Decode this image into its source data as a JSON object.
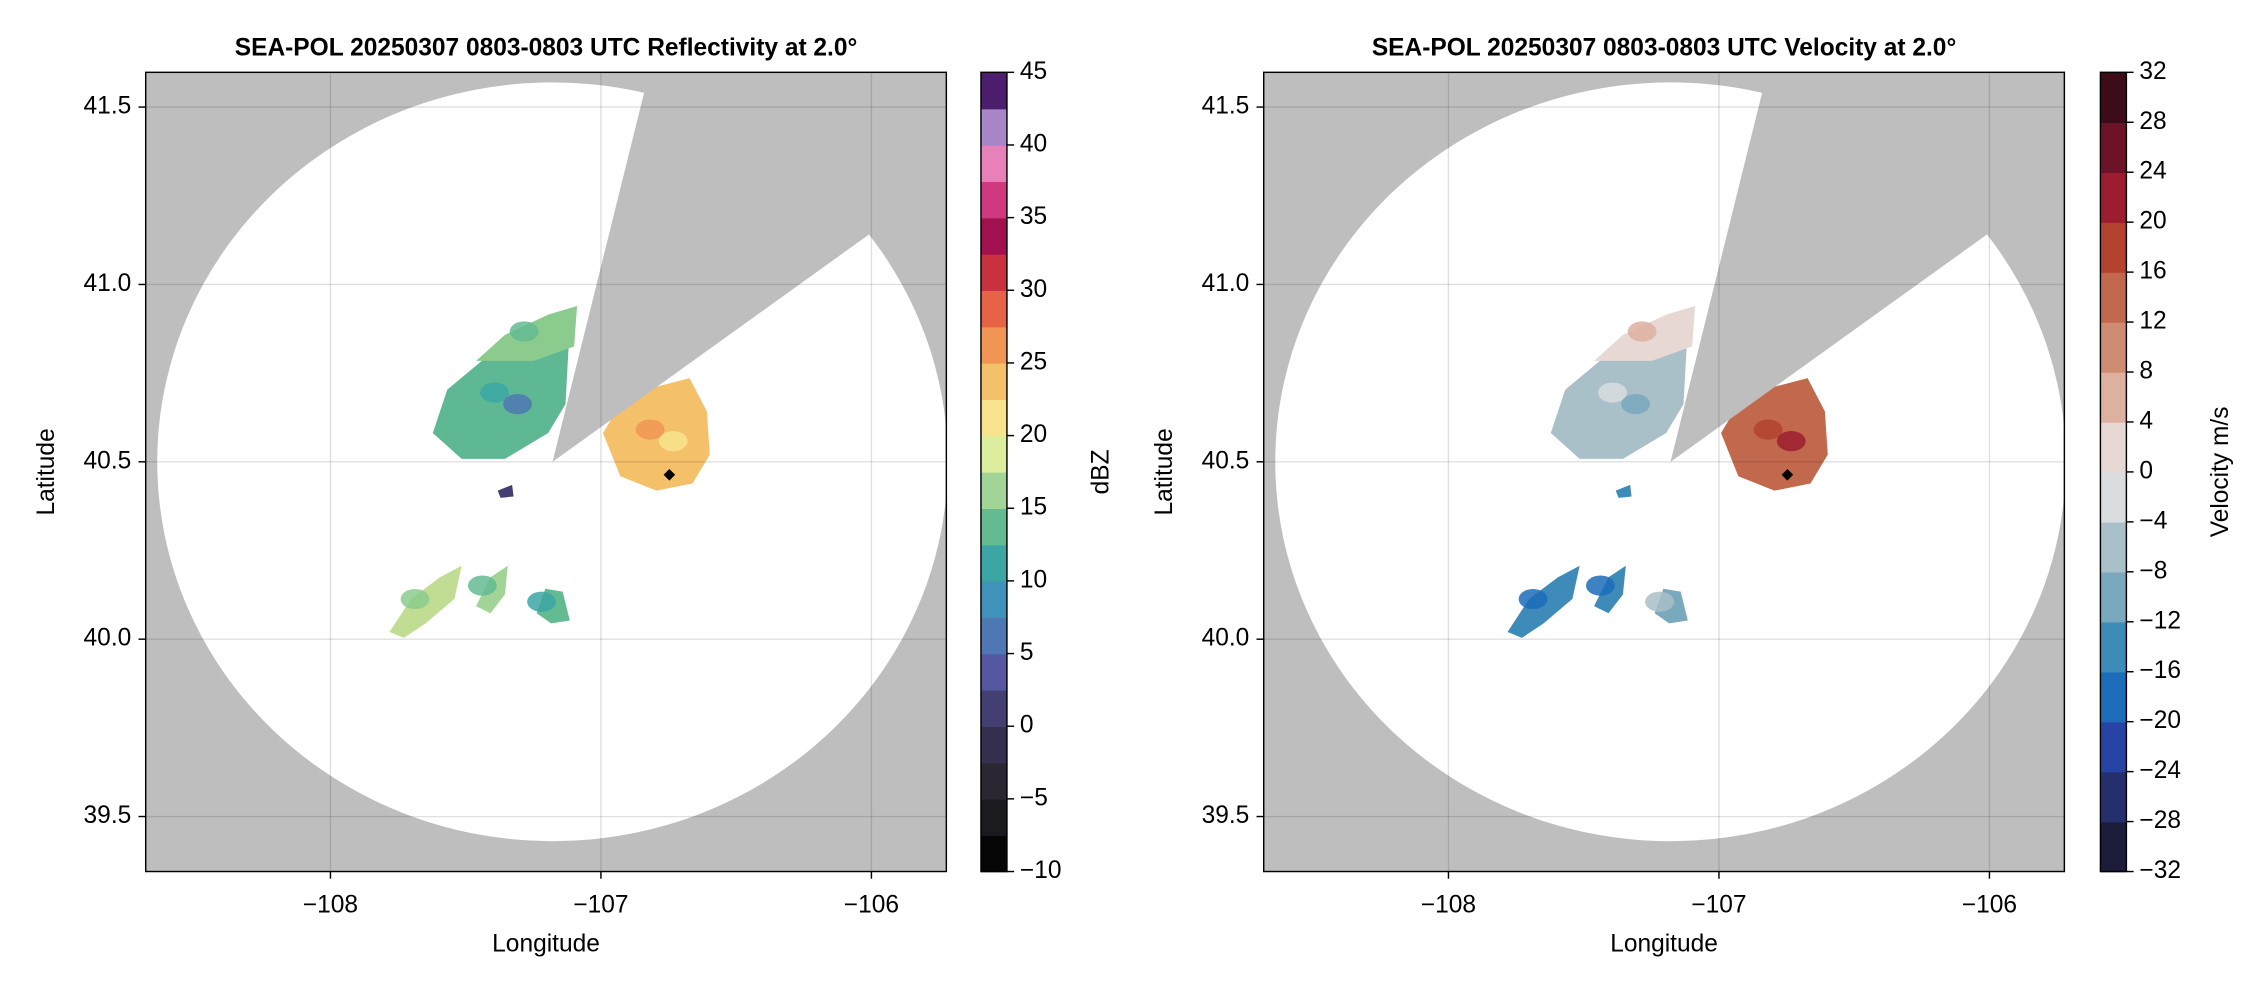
{
  "chart_data": [
    {
      "type": "radar-ppi",
      "title": "SEA-POL 20250307 0803-0803 UTC Reflectivity at 2.0°",
      "xlabel": "Longitude",
      "ylabel": "Latitude",
      "xlim": [
        -108.683,
        -105.723
      ],
      "ylim": [
        39.345,
        41.598
      ],
      "xticks": [
        {
          "value": -108,
          "label": "−108"
        },
        {
          "value": -107,
          "label": "−107"
        },
        {
          "value": -106,
          "label": "−106"
        }
      ],
      "yticks": [
        39.5,
        {
          "value": 40,
          "label": "40.0"
        },
        40.5,
        {
          "value": 41,
          "label": "41.0"
        },
        41.5
      ],
      "grid": true,
      "colorbar": {
        "label": "dBZ",
        "lim": [
          -10,
          45
        ],
        "ticks": [
          {
            "value": -10,
            "label": "−10"
          },
          {
            "value": -5,
            "label": "−5"
          },
          0,
          5,
          10,
          15,
          20,
          25,
          30,
          35,
          40,
          45
        ],
        "colors": [
          "#050505",
          "#1a1a1f",
          "#2a2733",
          "#35304f",
          "#433f72",
          "#5557a0",
          "#4f77b4",
          "#3f93bb",
          "#3ba6a4",
          "#63bb92",
          "#a3d497",
          "#dcee9d",
          "#f7e48c",
          "#f5c06a",
          "#f09554",
          "#e66445",
          "#c8323f",
          "#a3104f",
          "#d0387f",
          "#e880b9",
          "#a886c8",
          "#4d1e6e"
        ]
      }
    },
    {
      "type": "radar-ppi",
      "title": "SEA-POL 20250307 0803-0803 UTC Velocity at 2.0°",
      "xlabel": "Longitude",
      "ylabel": "Latitude",
      "xlim": [
        -108.683,
        -105.723
      ],
      "ylim": [
        39.345,
        41.598
      ],
      "xticks": [
        {
          "value": -108,
          "label": "−108"
        },
        {
          "value": -107,
          "label": "−107"
        },
        {
          "value": -106,
          "label": "−106"
        }
      ],
      "yticks": [
        39.5,
        {
          "value": 40,
          "label": "40.0"
        },
        40.5,
        {
          "value": 41,
          "label": "41.0"
        },
        41.5
      ],
      "grid": true,
      "colorbar": {
        "label": "Velocity m/s",
        "lim": [
          -32,
          32
        ],
        "ticks": [
          {
            "value": -32,
            "label": "−32"
          },
          {
            "value": -28,
            "label": "−28"
          },
          {
            "value": -24,
            "label": "−24"
          },
          {
            "value": -20,
            "label": "−20"
          },
          {
            "value": -16,
            "label": "−16"
          },
          {
            "value": -12,
            "label": "−12"
          },
          {
            "value": -8,
            "label": "−8"
          },
          {
            "value": -4,
            "label": "−4"
          },
          0,
          4,
          8,
          12,
          16,
          20,
          24,
          28,
          32
        ],
        "colors": [
          "#1b1c3a",
          "#252f6e",
          "#2843a6",
          "#1c6cba",
          "#3e8ab8",
          "#7aa8bd",
          "#a9c0c9",
          "#d9dde0",
          "#e8d8d4",
          "#ddb09f",
          "#cf8c73",
          "#c2684d",
          "#b3432f",
          "#9c1d30",
          "#6e1227",
          "#3d0c18"
        ]
      }
    }
  ]
}
